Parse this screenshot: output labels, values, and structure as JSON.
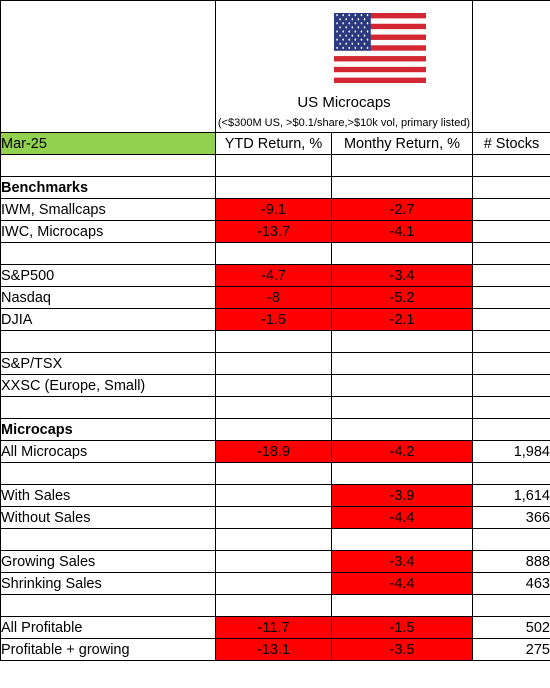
{
  "header": {
    "title": "US Microcaps",
    "subtitle": "(<$300M US, >$0.1/share,>$10k vol, primary listed)",
    "flag_icon": "us-flag-icon"
  },
  "columns": {
    "period": "Mar-25",
    "ytd": "YTD Return, %",
    "monthly": "Monthy Return, %",
    "stocks": "# Stocks"
  },
  "colors": {
    "negative_fill": "#ff0000",
    "period_fill": "#92d050"
  },
  "rows": [
    {
      "label": "",
      "ytd": "",
      "monthly": "",
      "stocks": ""
    },
    {
      "label": "Benchmarks",
      "ytd": "",
      "monthly": "",
      "stocks": ""
    },
    {
      "label": "IWM, Smallcaps",
      "ytd": "-9.1",
      "monthly": "-2.7",
      "stocks": ""
    },
    {
      "label": "IWC, Microcaps",
      "ytd": "-13.7",
      "monthly": "-4.1",
      "stocks": ""
    },
    {
      "label": "",
      "ytd": "",
      "monthly": "",
      "stocks": ""
    },
    {
      "label": "S&P500",
      "ytd": "-4.7",
      "monthly": "-3.4",
      "stocks": ""
    },
    {
      "label": "Nasdaq",
      "ytd": "-8",
      "monthly": "-5.2",
      "stocks": ""
    },
    {
      "label": "DJIA",
      "ytd": "-1.5",
      "monthly": "-2.1",
      "stocks": ""
    },
    {
      "label": "",
      "ytd": "",
      "monthly": "",
      "stocks": ""
    },
    {
      "label": "S&P/TSX",
      "ytd": "",
      "monthly": "",
      "stocks": ""
    },
    {
      "label": "XXSC (Europe, Small)",
      "ytd": "",
      "monthly": "",
      "stocks": ""
    },
    {
      "label": "",
      "ytd": "",
      "monthly": "",
      "stocks": ""
    },
    {
      "label": "Microcaps",
      "ytd": "",
      "monthly": "",
      "stocks": ""
    },
    {
      "label": "All Microcaps",
      "ytd": "-18.9",
      "monthly": "-4.2",
      "stocks": "1,984"
    },
    {
      "label": "",
      "ytd": "",
      "monthly": "",
      "stocks": ""
    },
    {
      "label": "With Sales",
      "ytd": "",
      "monthly": "-3.9",
      "stocks": "1,614"
    },
    {
      "label": "Without Sales",
      "ytd": "",
      "monthly": "-4.4",
      "stocks": "366"
    },
    {
      "label": "",
      "ytd": "",
      "monthly": "",
      "stocks": ""
    },
    {
      "label": "Growing Sales",
      "ytd": "",
      "monthly": "-3.4",
      "stocks": "888"
    },
    {
      "label": "Shrinking Sales",
      "ytd": "",
      "monthly": "-4.4",
      "stocks": "463"
    },
    {
      "label": "",
      "ytd": "",
      "monthly": "",
      "stocks": ""
    },
    {
      "label": "All Profitable",
      "ytd": "-11.7",
      "monthly": "-1.5",
      "stocks": "502"
    },
    {
      "label": "Profitable + growing",
      "ytd": "-13.1",
      "monthly": "-3.5",
      "stocks": "275"
    }
  ]
}
